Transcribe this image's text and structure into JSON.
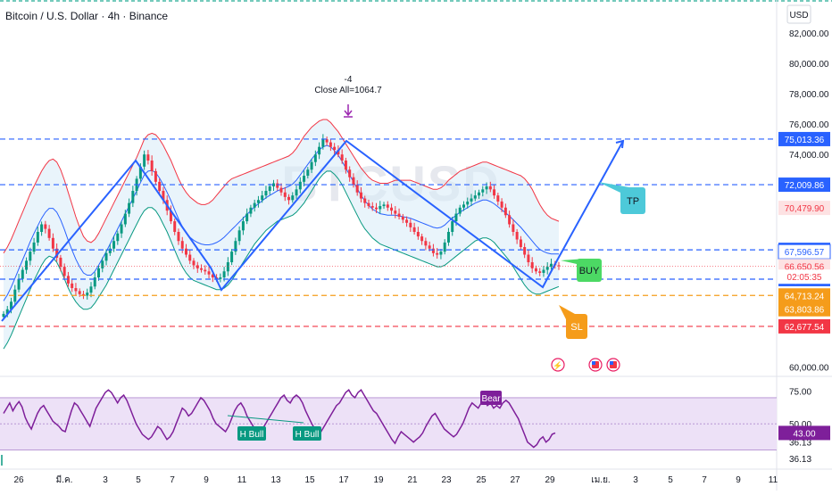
{
  "chart_data": {
    "type": "candlestick",
    "title": "Bitcoin / U.S. Dollar · 4h · Binance",
    "watermark": "BTCUSD",
    "currency": "USD",
    "x_ticks": [
      "26",
      "มี.ค.",
      "3",
      "5",
      "7",
      "9",
      "11",
      "13",
      "15",
      "17",
      "19",
      "21",
      "23",
      "25",
      "27",
      "29",
      "เม.ย.",
      "3",
      "5",
      "7",
      "9",
      "11"
    ],
    "y_ticks": [
      "82,000.00",
      "80,000.00",
      "78,000.00",
      "76,000.00",
      "74,000.00",
      "60,000.00"
    ],
    "ylim": [
      59500,
      83000
    ],
    "price_levels": [
      {
        "label": "75,013.36",
        "value": 75013.36,
        "color": "#2962ff",
        "dashed": true
      },
      {
        "label": "72,009.86",
        "value": 72009.86,
        "color": "#2962ff",
        "dashed": true
      },
      {
        "label": "67,719.14",
        "value": 67719.14,
        "color": "#2962ff",
        "dashed": true
      },
      {
        "label": "65,788.32",
        "value": 65788.32,
        "color": "#2962ff",
        "dashed": true
      },
      {
        "label": "64,713.24",
        "value": 64713.24,
        "color": "#f59c1a",
        "dashed": true
      },
      {
        "label": "62,677.54",
        "value": 62677.54,
        "color": "#f23645",
        "dashed": true
      }
    ],
    "price_tags": [
      {
        "label": "70,479.90",
        "value": 70479.9,
        "bg": "#fde2e3",
        "fg": "#f23645"
      },
      {
        "label": "67,596.57",
        "value": 67596.57,
        "bg": "#ffffff",
        "fg": "#2962ff",
        "border": "#2962ff"
      },
      {
        "label": "66,650.56",
        "value": 66650.56,
        "bg": "#fde2e3",
        "fg": "#f23645"
      },
      {
        "label": "02:05:35",
        "value": 65950,
        "bg": "#ffffff",
        "fg": "#f23645"
      },
      {
        "label": "63,803.86",
        "value": 63803.86,
        "bg": "#f59c1a",
        "fg": "#ffffff"
      }
    ],
    "last_price": 66650.56,
    "annotation": {
      "line1": "-4",
      "line2": "Close All=1064.7"
    },
    "labels": {
      "buy": "BUY",
      "tp": "TP",
      "sl": "SL"
    },
    "rsi": {
      "ticks": [
        "75.00",
        "50.00",
        "36.13"
      ],
      "ylim": [
        18,
        85
      ],
      "band": [
        30,
        70
      ],
      "tag_value": "43.00",
      "tag_value_2": "36.13",
      "labels": [
        "H Bull",
        "H Bull",
        "Bear"
      ],
      "values": [
        58,
        62,
        66,
        60,
        64,
        67,
        63,
        55,
        50,
        46,
        52,
        58,
        62,
        64,
        60,
        56,
        52,
        50,
        48,
        45,
        44,
        52,
        60,
        66,
        64,
        60,
        56,
        52,
        48,
        55,
        62,
        66,
        70,
        74,
        76,
        74,
        70,
        66,
        70,
        72,
        68,
        62,
        56,
        50,
        46,
        42,
        40,
        38,
        40,
        44,
        48,
        46,
        42,
        38,
        40,
        44,
        50,
        56,
        62,
        60,
        56,
        58,
        62,
        66,
        70,
        68,
        64,
        60,
        54,
        50,
        48,
        46,
        44,
        48,
        54,
        60,
        64,
        66,
        62,
        56,
        52,
        48,
        46,
        44,
        46,
        50,
        54,
        58,
        62,
        66,
        70,
        72,
        68,
        66,
        70,
        72,
        70,
        66,
        60,
        55,
        50,
        46,
        42,
        44,
        48,
        52,
        56,
        60,
        64,
        66,
        70,
        74,
        76,
        72,
        70,
        74,
        76,
        72,
        68,
        64,
        60,
        58,
        54,
        50,
        46,
        42,
        38,
        35,
        40,
        44,
        42,
        40,
        38,
        36,
        38,
        40,
        43,
        48,
        52,
        56,
        58,
        54,
        50,
        46,
        44,
        42,
        40,
        42,
        46,
        50,
        56,
        62,
        66,
        64,
        62,
        66,
        68,
        64,
        66,
        62,
        64,
        62,
        66,
        68,
        66,
        62,
        58,
        54,
        48,
        42,
        36,
        34,
        32,
        34,
        38,
        40,
        36,
        38,
        42,
        43
      ]
    },
    "series": [
      {
        "name": "price",
        "closes": [
          63500,
          63800,
          64300,
          65100,
          65800,
          66400,
          67000,
          67600,
          68200,
          68900,
          69400,
          69100,
          68500,
          67800,
          67200,
          66600,
          66000,
          65500,
          65200,
          65000,
          64800,
          64700,
          64900,
          65300,
          65900,
          66500,
          67000,
          67500,
          67800,
          68300,
          68800,
          69400,
          70100,
          70800,
          71600,
          72400,
          73200,
          74000,
          73600,
          72900,
          72200,
          71600,
          71000,
          70300,
          69600,
          68900,
          68300,
          67800,
          67400,
          67000,
          66700,
          66500,
          66400,
          66300,
          66100,
          65900,
          65800,
          65900,
          66300,
          66900,
          67600,
          68300,
          69000,
          69600,
          70100,
          70500,
          70800,
          71000,
          71300,
          71600,
          71900,
          72100,
          71800,
          71500,
          71200,
          71000,
          71300,
          71700,
          72200,
          72600,
          73000,
          73500,
          74000,
          74500,
          75000,
          74800,
          74500,
          74300,
          74000,
          73600,
          73000,
          72500,
          72000,
          71500,
          71100,
          70800,
          70600,
          70500,
          70400,
          70600,
          70700,
          70500,
          70300,
          70100,
          69900,
          69700,
          69500,
          69200,
          68900,
          68600,
          68300,
          68000,
          67800,
          67500,
          67400,
          67600,
          68200,
          68900,
          69600,
          70100,
          70500,
          70700,
          70900,
          71100,
          71300,
          71500,
          71700,
          71900,
          71700,
          71300,
          70900,
          70500,
          70000,
          69400,
          68900,
          68400,
          67900,
          67400,
          66900,
          66500,
          66300,
          66200,
          66400,
          66600,
          66800,
          66700,
          66650
        ]
      }
    ],
    "bb_upper": [
      67500,
      67900,
      68400,
      69000,
      69600,
      70200,
      70800,
      71400,
      71900,
      72400,
      72900,
      73300,
      73600,
      73700,
      73500,
      73000,
      72300,
      71500,
      70700,
      69900,
      69200,
      68600,
      68300,
      68200,
      68400,
      68800,
      69300,
      69800,
      70300,
      70800,
      71300,
      71800,
      72300,
      72800,
      73300,
      73800,
      74400,
      75000,
      75300,
      75400,
      75300,
      75000,
      74600,
      74100,
      73600,
      73000,
      72400,
      71900,
      71500,
      71200,
      71000,
      70800,
      70700,
      70700,
      70800,
      71000,
      71300,
      71600,
      71900,
      72200,
      72400,
      72500,
      72600,
      72700,
      72800,
      72900,
      73000,
      73100,
      73200,
      73300,
      73400,
      73500,
      73600,
      73700,
      73800,
      73900,
      74100,
      74400,
      74800,
      75200,
      75500,
      75800,
      76000,
      76200,
      76300,
      76300,
      76100,
      75800,
      75500,
      75100,
      74700,
      74300,
      73900,
      73500,
      73100,
      72800,
      72500,
      72300,
      72200,
      72100,
      72100,
      72100,
      72200,
      72300,
      72300,
      72300,
      72300,
      72300,
      72200,
      72100,
      72000,
      71900,
      71800,
      71700,
      71700,
      71800,
      72000,
      72300,
      72500,
      72700,
      72900,
      73000,
      73100,
      73200,
      73300,
      73400,
      73500,
      73500,
      73400,
      73300,
      73200,
      73100,
      73000,
      72900,
      72800,
      72700,
      72600,
      72400,
      72100,
      71700,
      71200,
      70700,
      70300,
      70000,
      69800,
      69700,
      69600
    ],
    "bb_lower": [
      61200,
      61600,
      62100,
      62700,
      63300,
      63900,
      64500,
      65100,
      65700,
      66200,
      66700,
      67100,
      67300,
      67200,
      66900,
      66400,
      65800,
      65200,
      64700,
      64300,
      64000,
      63800,
      63800,
      63900,
      64200,
      64600,
      65000,
      65400,
      65900,
      66400,
      66900,
      67400,
      67900,
      68400,
      68900,
      69400,
      69900,
      70300,
      70500,
      70500,
      70300,
      69900,
      69400,
      68900,
      68300,
      67700,
      67100,
      66600,
      66200,
      65900,
      65700,
      65600,
      65500,
      65400,
      65300,
      65200,
      65100,
      65100,
      65200,
      65400,
      65700,
      66100,
      66500,
      66900,
      67300,
      67700,
      68100,
      68400,
      68700,
      69000,
      69200,
      69400,
      69600,
      69700,
      69800,
      69900,
      70000,
      70200,
      70500,
      70800,
      71200,
      71600,
      72000,
      72400,
      72700,
      72900,
      72900,
      72700,
      72400,
      72000,
      71500,
      71000,
      70500,
      70000,
      69500,
      69100,
      68800,
      68500,
      68300,
      68100,
      68000,
      67900,
      67800,
      67700,
      67600,
      67500,
      67400,
      67300,
      67200,
      67100,
      67000,
      66900,
      66800,
      66700,
      66600,
      66600,
      66700,
      66900,
      67100,
      67300,
      67500,
      67700,
      67900,
      68100,
      68300,
      68400,
      68500,
      68500,
      68400,
      68200,
      67900,
      67600,
      67300,
      67000,
      66600,
      66200,
      65800,
      65400,
      65100,
      64900,
      64800,
      64800,
      64900,
      65000,
      65100,
      65200,
      65300
    ]
  }
}
